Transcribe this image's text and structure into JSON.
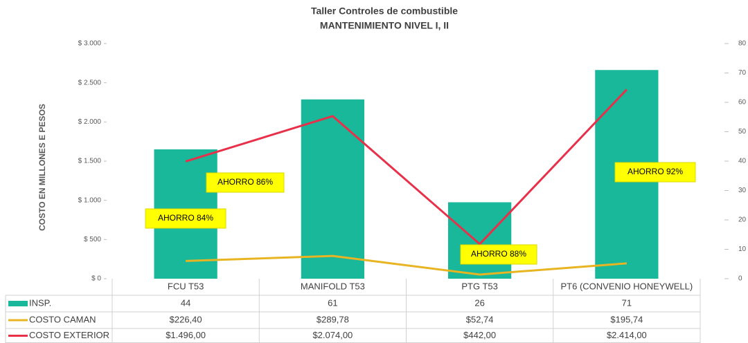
{
  "chart_data": {
    "type": "combo",
    "title": "Taller Controles de combustible",
    "subtitle": "MANTENIMIENTO NIVEL I, II",
    "y_label": "COSTO EN MILLONES E PESOS",
    "categories": [
      "FCU T53",
      "MANIFOLD T53",
      "PTG T53",
      "PT6 (CONVENIO HONEYWELL)"
    ],
    "series": [
      {
        "name": "INSP.",
        "type": "bar",
        "axis": "y2",
        "color": "#19b89a",
        "values": [
          44,
          61,
          26,
          71
        ]
      },
      {
        "name": "COSTO CAMAN",
        "type": "line",
        "color": "#e8b422",
        "values": [
          226.4,
          289.78,
          52.74,
          195.74
        ],
        "value_labels": [
          "$226,40",
          "$289,78",
          "$52,74",
          "$195,74"
        ]
      },
      {
        "name": "COSTO EXTERIOR",
        "type": "line",
        "color": "#e8304a",
        "values": [
          1496,
          2074,
          442,
          2414
        ],
        "value_labels": [
          "$1.496,00",
          "$2.074,00",
          "$442,00",
          "$2.414,00"
        ]
      }
    ],
    "ylim": [
      0,
      3000
    ],
    "yticks": [
      {
        "value": 0,
        "label": "$ 0"
      },
      {
        "value": 500,
        "label": "$ 500"
      },
      {
        "value": 1000,
        "label": "$ 1.000"
      },
      {
        "value": 1500,
        "label": "$ 1.500"
      },
      {
        "value": 2000,
        "label": "$ 2.000"
      },
      {
        "value": 2500,
        "label": "$ 2.500"
      },
      {
        "value": 3000,
        "label": "$ 3.000"
      }
    ],
    "y2lim": [
      0,
      80
    ],
    "y2ticks": [
      0,
      10,
      20,
      30,
      40,
      50,
      60,
      70,
      80
    ],
    "annotations": [
      "AHORRO 84%",
      "AHORRO 86%",
      "AHORRO 88%",
      "AHORRO 92%"
    ]
  }
}
